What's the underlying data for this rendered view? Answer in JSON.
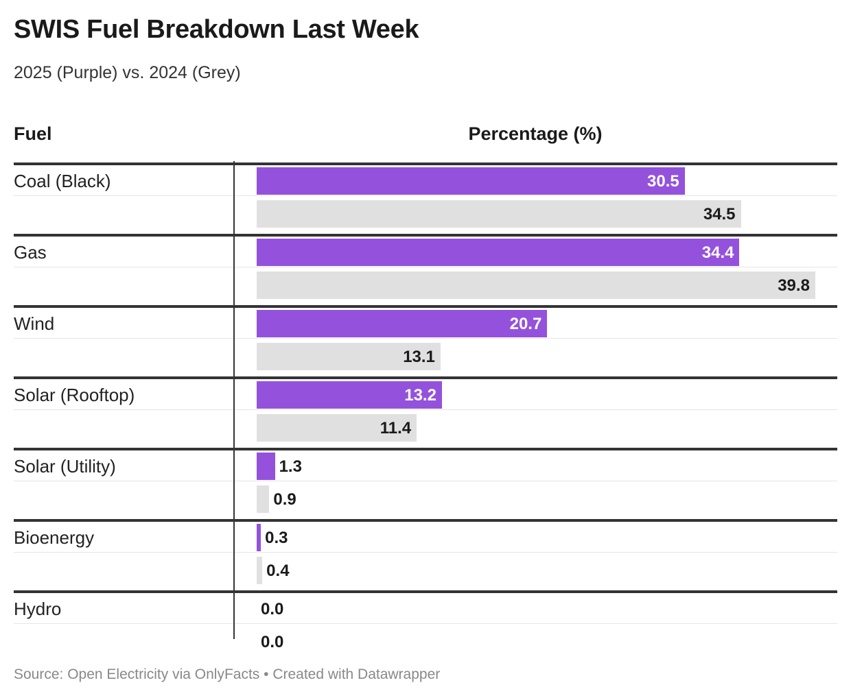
{
  "header": {
    "title": "SWIS Fuel Breakdown Last Week",
    "subtitle": "2025 (Purple) vs. 2024 (Grey)"
  },
  "columns": {
    "fuel": "Fuel",
    "percentage": "Percentage (%)"
  },
  "colors": {
    "series_2025": "#9452dc",
    "series_2024": "#e0e0e0"
  },
  "chart_data": {
    "type": "bar",
    "orientation": "horizontal",
    "title": "SWIS Fuel Breakdown Last Week",
    "subtitle": "2025 (Purple) vs. 2024 (Grey)",
    "xlabel": "Percentage (%)",
    "ylabel": "Fuel",
    "xlim": [
      0,
      40
    ],
    "categories": [
      "Coal (Black)",
      "Gas",
      "Wind",
      "Solar (Rooftop)",
      "Solar (Utility)",
      "Bioenergy",
      "Hydro"
    ],
    "series": [
      {
        "name": "2025",
        "color": "#9452dc",
        "values": [
          30.5,
          34.4,
          20.7,
          13.2,
          1.3,
          0.3,
          0.0
        ]
      },
      {
        "name": "2024",
        "color": "#e0e0e0",
        "values": [
          34.5,
          39.8,
          13.1,
          11.4,
          0.9,
          0.4,
          0.0
        ]
      }
    ],
    "value_labels": [
      [
        "30.5",
        "34.5"
      ],
      [
        "34.4",
        "39.8"
      ],
      [
        "20.7",
        "13.1"
      ],
      [
        "13.2",
        "11.4"
      ],
      [
        "1.3",
        "0.9"
      ],
      [
        "0.3",
        "0.4"
      ],
      [
        "0.0",
        "0.0"
      ]
    ],
    "grid": false,
    "legend": "none"
  },
  "footer": {
    "source": "Source: Open Electricity via OnlyFacts • Created with Datawrapper"
  }
}
